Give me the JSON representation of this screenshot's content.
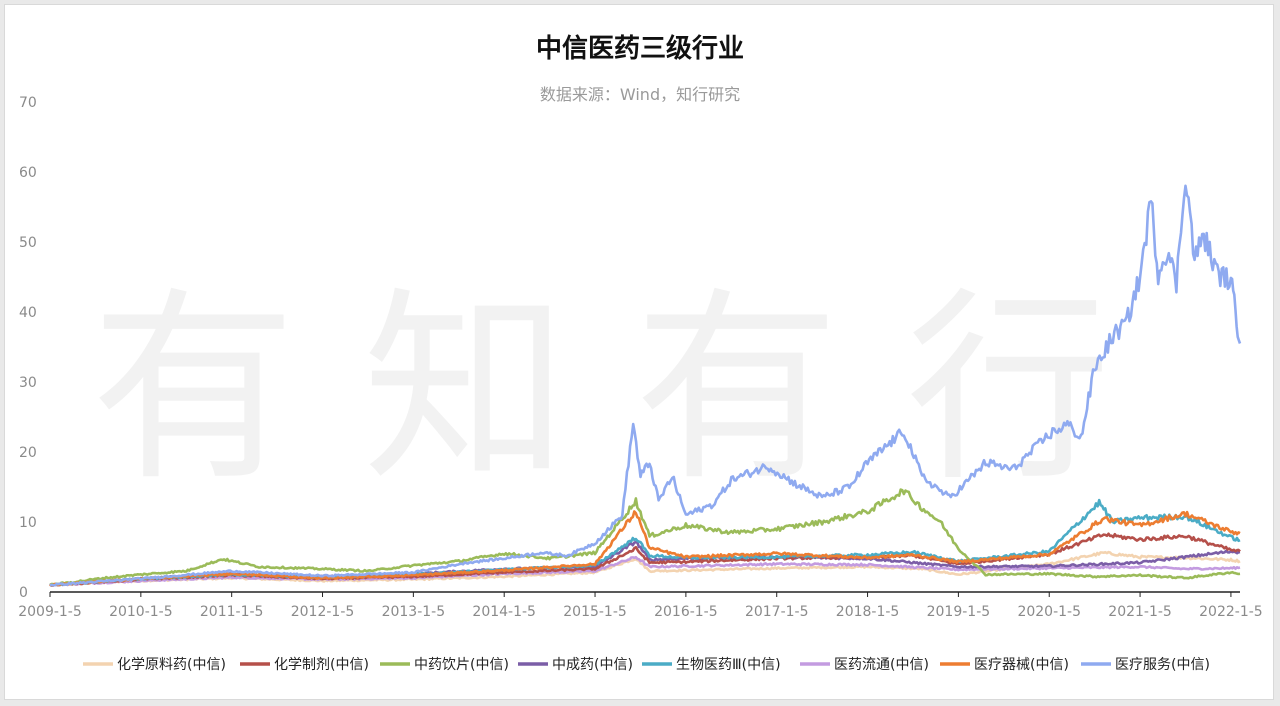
{
  "chart_data": {
    "type": "line",
    "title": "中信医药三级行业",
    "subtitle": "数据来源：Wind，知行研究",
    "watermark": "有知有行",
    "xlabel": "",
    "ylabel": "",
    "ylim": [
      0,
      70
    ],
    "yticks": [
      0,
      10,
      20,
      30,
      40,
      50,
      60,
      70
    ],
    "xlim": [
      2009.0,
      2022.1
    ],
    "xticks": [
      {
        "value": 2009.0,
        "label": "2009-1-5"
      },
      {
        "value": 2010.0,
        "label": "2010-1-5"
      },
      {
        "value": 2011.0,
        "label": "2011-1-5"
      },
      {
        "value": 2012.0,
        "label": "2012-1-5"
      },
      {
        "value": 2013.0,
        "label": "2013-1-5"
      },
      {
        "value": 2014.0,
        "label": "2014-1-5"
      },
      {
        "value": 2015.0,
        "label": "2015-1-5"
      },
      {
        "value": 2016.0,
        "label": "2016-1-5"
      },
      {
        "value": 2017.0,
        "label": "2017-1-5"
      },
      {
        "value": 2018.0,
        "label": "2018-1-5"
      },
      {
        "value": 2019.0,
        "label": "2019-1-5"
      },
      {
        "value": 2020.0,
        "label": "2020-1-5"
      },
      {
        "value": 2021.0,
        "label": "2021-1-5"
      },
      {
        "value": 2022.0,
        "label": "2022-1-5"
      }
    ],
    "grid": false,
    "legend_position": "bottom",
    "series": [
      {
        "name": "化学原料药(中信)",
        "color": "#f3d3b0",
        "points": [
          [
            2009.0,
            1.0
          ],
          [
            2010.0,
            1.6
          ],
          [
            2011.0,
            2.0
          ],
          [
            2012.0,
            1.6
          ],
          [
            2013.0,
            1.8
          ],
          [
            2014.0,
            2.2
          ],
          [
            2015.0,
            2.8
          ],
          [
            2015.45,
            4.8
          ],
          [
            2015.6,
            3.0
          ],
          [
            2016.0,
            3.1
          ],
          [
            2017.0,
            3.4
          ],
          [
            2018.0,
            3.6
          ],
          [
            2018.6,
            3.3
          ],
          [
            2019.0,
            2.5
          ],
          [
            2020.0,
            4.0
          ],
          [
            2020.6,
            5.6
          ],
          [
            2021.0,
            5.0
          ],
          [
            2021.5,
            4.9
          ],
          [
            2022.0,
            4.6
          ],
          [
            2022.1,
            4.4
          ]
        ]
      },
      {
        "name": "化学制剂(中信)",
        "color": "#b5504a",
        "points": [
          [
            2009.0,
            1.0
          ],
          [
            2010.0,
            1.8
          ],
          [
            2011.0,
            2.4
          ],
          [
            2012.0,
            1.9
          ],
          [
            2013.0,
            2.2
          ],
          [
            2014.0,
            2.8
          ],
          [
            2015.0,
            3.3
          ],
          [
            2015.45,
            6.2
          ],
          [
            2015.6,
            4.2
          ],
          [
            2016.0,
            4.3
          ],
          [
            2017.0,
            4.8
          ],
          [
            2018.0,
            5.0
          ],
          [
            2018.5,
            5.2
          ],
          [
            2019.0,
            4.0
          ],
          [
            2020.0,
            5.4
          ],
          [
            2020.6,
            8.2
          ],
          [
            2021.0,
            7.5
          ],
          [
            2021.5,
            8.0
          ],
          [
            2022.0,
            6.0
          ],
          [
            2022.1,
            5.8
          ]
        ]
      },
      {
        "name": "中药饮片(中信)",
        "color": "#9bbb59",
        "points": [
          [
            2009.0,
            1.0
          ],
          [
            2009.6,
            2.0
          ],
          [
            2010.0,
            2.5
          ],
          [
            2010.5,
            3.0
          ],
          [
            2010.9,
            4.7
          ],
          [
            2011.3,
            3.6
          ],
          [
            2012.0,
            3.3
          ],
          [
            2012.5,
            3.0
          ],
          [
            2013.0,
            3.8
          ],
          [
            2013.5,
            4.4
          ],
          [
            2014.0,
            5.5
          ],
          [
            2014.5,
            4.8
          ],
          [
            2015.0,
            5.6
          ],
          [
            2015.45,
            13.0
          ],
          [
            2015.6,
            8.0
          ],
          [
            2016.0,
            9.5
          ],
          [
            2016.5,
            8.5
          ],
          [
            2017.0,
            9.0
          ],
          [
            2017.5,
            10.0
          ],
          [
            2018.0,
            11.5
          ],
          [
            2018.4,
            14.5
          ],
          [
            2018.6,
            12.0
          ],
          [
            2018.8,
            10.0
          ],
          [
            2019.0,
            6.2
          ],
          [
            2019.3,
            2.5
          ],
          [
            2020.0,
            2.6
          ],
          [
            2020.5,
            2.2
          ],
          [
            2021.0,
            2.4
          ],
          [
            2021.5,
            2.0
          ],
          [
            2022.0,
            2.8
          ],
          [
            2022.1,
            2.6
          ]
        ]
      },
      {
        "name": "中成药(中信)",
        "color": "#7b5ea7",
        "points": [
          [
            2009.0,
            1.0
          ],
          [
            2010.0,
            1.9
          ],
          [
            2011.0,
            2.6
          ],
          [
            2012.0,
            2.2
          ],
          [
            2013.0,
            2.6
          ],
          [
            2014.0,
            3.3
          ],
          [
            2015.0,
            3.6
          ],
          [
            2015.45,
            7.2
          ],
          [
            2015.6,
            4.6
          ],
          [
            2016.0,
            4.8
          ],
          [
            2017.0,
            5.0
          ],
          [
            2018.0,
            4.8
          ],
          [
            2019.0,
            3.6
          ],
          [
            2020.0,
            3.7
          ],
          [
            2021.0,
            4.2
          ],
          [
            2021.5,
            5.0
          ],
          [
            2022.0,
            5.8
          ],
          [
            2022.1,
            5.7
          ]
        ]
      },
      {
        "name": "生物医药Ⅲ(中信)",
        "color": "#4bacc6",
        "points": [
          [
            2009.0,
            1.0
          ],
          [
            2010.0,
            1.9
          ],
          [
            2011.0,
            2.5
          ],
          [
            2012.0,
            2.1
          ],
          [
            2013.0,
            2.5
          ],
          [
            2014.0,
            3.2
          ],
          [
            2015.0,
            3.8
          ],
          [
            2015.45,
            7.8
          ],
          [
            2015.6,
            5.2
          ],
          [
            2016.0,
            4.9
          ],
          [
            2017.0,
            5.0
          ],
          [
            2018.0,
            5.3
          ],
          [
            2018.5,
            5.7
          ],
          [
            2019.0,
            4.4
          ],
          [
            2020.0,
            5.8
          ],
          [
            2020.55,
            12.8
          ],
          [
            2020.7,
            10.0
          ],
          [
            2021.0,
            10.6
          ],
          [
            2021.5,
            10.8
          ],
          [
            2022.0,
            7.8
          ],
          [
            2022.1,
            7.4
          ]
        ]
      },
      {
        "name": "医药流通(中信)",
        "color": "#c39be0",
        "points": [
          [
            2009.0,
            1.0
          ],
          [
            2010.0,
            1.6
          ],
          [
            2011.0,
            2.1
          ],
          [
            2012.0,
            1.8
          ],
          [
            2013.0,
            2.0
          ],
          [
            2014.0,
            2.6
          ],
          [
            2015.0,
            3.0
          ],
          [
            2015.45,
            5.0
          ],
          [
            2015.6,
            3.6
          ],
          [
            2016.0,
            3.7
          ],
          [
            2017.0,
            4.0
          ],
          [
            2018.0,
            3.9
          ],
          [
            2019.0,
            3.2
          ],
          [
            2020.0,
            3.4
          ],
          [
            2021.0,
            3.6
          ],
          [
            2021.5,
            3.3
          ],
          [
            2022.0,
            3.4
          ],
          [
            2022.1,
            3.5
          ]
        ]
      },
      {
        "name": "医疗器械(中信)",
        "color": "#ed7d31",
        "points": [
          [
            2009.0,
            1.0
          ],
          [
            2010.0,
            1.9
          ],
          [
            2011.0,
            2.6
          ],
          [
            2012.0,
            2.0
          ],
          [
            2013.0,
            2.4
          ],
          [
            2014.0,
            3.1
          ],
          [
            2015.0,
            4.0
          ],
          [
            2015.45,
            11.5
          ],
          [
            2015.6,
            6.3
          ],
          [
            2016.0,
            5.0
          ],
          [
            2017.0,
            5.5
          ],
          [
            2018.0,
            4.9
          ],
          [
            2018.5,
            5.3
          ],
          [
            2019.0,
            4.3
          ],
          [
            2020.0,
            5.4
          ],
          [
            2020.6,
            10.5
          ],
          [
            2021.0,
            9.5
          ],
          [
            2021.5,
            11.2
          ],
          [
            2022.0,
            8.6
          ],
          [
            2022.1,
            8.4
          ]
        ]
      },
      {
        "name": "医疗服务(中信)",
        "color": "#8faaf0",
        "points": [
          [
            2009.0,
            1.0
          ],
          [
            2010.0,
            1.9
          ],
          [
            2011.0,
            3.0
          ],
          [
            2012.0,
            2.3
          ],
          [
            2013.0,
            2.8
          ],
          [
            2013.6,
            4.2
          ],
          [
            2014.0,
            4.8
          ],
          [
            2014.4,
            5.6
          ],
          [
            2014.7,
            5.2
          ],
          [
            2015.0,
            7.0
          ],
          [
            2015.3,
            11.0
          ],
          [
            2015.42,
            24.2
          ],
          [
            2015.5,
            16.5
          ],
          [
            2015.6,
            18.5
          ],
          [
            2015.7,
            13.0
          ],
          [
            2015.85,
            16.5
          ],
          [
            2016.0,
            11.0
          ],
          [
            2016.3,
            12.5
          ],
          [
            2016.5,
            16.0
          ],
          [
            2016.9,
            18.0
          ],
          [
            2017.2,
            15.5
          ],
          [
            2017.5,
            13.5
          ],
          [
            2017.8,
            15.0
          ],
          [
            2018.0,
            18.5
          ],
          [
            2018.4,
            23.0
          ],
          [
            2018.6,
            16.5
          ],
          [
            2018.9,
            13.5
          ],
          [
            2019.0,
            14.5
          ],
          [
            2019.3,
            18.5
          ],
          [
            2019.6,
            17.5
          ],
          [
            2019.8,
            20.0
          ],
          [
            2020.0,
            22.5
          ],
          [
            2020.2,
            24.0
          ],
          [
            2020.35,
            22.0
          ],
          [
            2020.5,
            32.0
          ],
          [
            2020.7,
            36.5
          ],
          [
            2020.85,
            38.5
          ],
          [
            2021.0,
            45.0
          ],
          [
            2021.12,
            56.0
          ],
          [
            2021.2,
            45.5
          ],
          [
            2021.3,
            49.0
          ],
          [
            2021.4,
            44.0
          ],
          [
            2021.5,
            60.0
          ],
          [
            2021.6,
            47.5
          ],
          [
            2021.7,
            51.0
          ],
          [
            2021.85,
            45.5
          ],
          [
            2022.0,
            44.5
          ],
          [
            2022.05,
            40.0
          ],
          [
            2022.1,
            35.5
          ]
        ]
      }
    ]
  }
}
